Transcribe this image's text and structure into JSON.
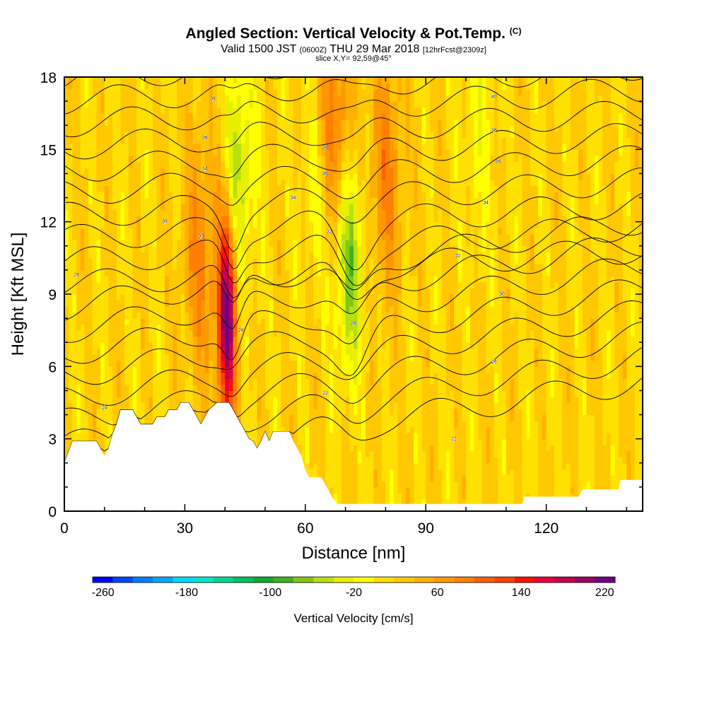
{
  "header": {
    "title": "Angled Section: Vertical Velocity & Pot.Temp.",
    "title_units": "(C)",
    "valid_prefix": "Valid 1500 JST",
    "valid_utc": "(0600Z)",
    "valid_date": "THU 29 Mar 2018",
    "forecast": "[12hrFcst@2309z]",
    "slice": "slice X,Y= 92,59@45°"
  },
  "chart_data": {
    "type": "heatmap",
    "xlabel": "Distance [nm]",
    "ylabel": "Height [Kft MSL]",
    "xlim": [
      0,
      144
    ],
    "ylim": [
      0,
      18
    ],
    "x_ticks": [
      "0",
      "30",
      "60",
      "90",
      "120"
    ],
    "x_tick_values": [
      0,
      30,
      60,
      90,
      120
    ],
    "y_ticks": [
      "0",
      "3",
      "6",
      "9",
      "12",
      "15",
      "18"
    ],
    "y_tick_values": [
      0,
      3,
      6,
      9,
      12,
      15,
      18
    ],
    "colorbar": {
      "title": "Vertical Velocity [cm/s]",
      "range": [
        -270,
        230
      ],
      "tick_labels": [
        "-260",
        "-180",
        "-100",
        "-20",
        "60",
        "140",
        "220"
      ],
      "tick_values": [
        -260,
        -180,
        -100,
        -20,
        60,
        140,
        220
      ],
      "colors": [
        "#0000ff",
        "#0044ff",
        "#0080ff",
        "#00a8ff",
        "#00d8ff",
        "#00e8c8",
        "#00d890",
        "#00c060",
        "#10a830",
        "#40b020",
        "#80c818",
        "#b8e010",
        "#e8f000",
        "#ffff00",
        "#ffe000",
        "#ffc800",
        "#ffb000",
        "#ff9800",
        "#ff8000",
        "#ff6000",
        "#ff4000",
        "#ff1000",
        "#e8003a",
        "#c00050",
        "#9a0064",
        "#700080"
      ]
    },
    "terrain_kft": [
      [
        0,
        2.0
      ],
      [
        2,
        2.9
      ],
      [
        8,
        2.9
      ],
      [
        9,
        2.6
      ],
      [
        10,
        2.3
      ],
      [
        11,
        2.6
      ],
      [
        12,
        3.2
      ],
      [
        13,
        3.6
      ],
      [
        14,
        4.2
      ],
      [
        17,
        4.2
      ],
      [
        18,
        3.9
      ],
      [
        19,
        3.6
      ],
      [
        20,
        3.6
      ],
      [
        21,
        3.6
      ],
      [
        22,
        3.6
      ],
      [
        23,
        3.9
      ],
      [
        25,
        3.9
      ],
      [
        26,
        4.2
      ],
      [
        28,
        4.2
      ],
      [
        29,
        4.5
      ],
      [
        31,
        4.5
      ],
      [
        32,
        4.2
      ],
      [
        33,
        3.9
      ],
      [
        34,
        3.6
      ],
      [
        35,
        3.9
      ],
      [
        36,
        4.2
      ],
      [
        38,
        4.5
      ],
      [
        41,
        4.5
      ],
      [
        42,
        4.2
      ],
      [
        43,
        3.9
      ],
      [
        44,
        3.6
      ],
      [
        45,
        3.3
      ],
      [
        46,
        3.0
      ],
      [
        47,
        2.9
      ],
      [
        48,
        2.6
      ],
      [
        49,
        2.9
      ],
      [
        50,
        3.3
      ],
      [
        51,
        2.9
      ],
      [
        52,
        3.3
      ],
      [
        56,
        3.3
      ],
      [
        57,
        2.9
      ],
      [
        58,
        2.6
      ],
      [
        59,
        2.3
      ],
      [
        60,
        1.7
      ],
      [
        61,
        1.4
      ],
      [
        64,
        1.4
      ],
      [
        65,
        1.1
      ],
      [
        66,
        0.8
      ],
      [
        67,
        0.5
      ],
      [
        68,
        0.3
      ],
      [
        114,
        0.3
      ],
      [
        114.5,
        0.6
      ],
      [
        128,
        0.6
      ],
      [
        129,
        0.9
      ],
      [
        138,
        0.9
      ],
      [
        138.5,
        1.3
      ],
      [
        144,
        1.3
      ]
    ],
    "updrafts": [
      {
        "x": 40.5,
        "z": 8.0,
        "peak_cm_s": 200
      },
      {
        "x": 34,
        "z": 10.5,
        "peak_cm_s": 60
      },
      {
        "x": 80,
        "z": 14,
        "peak_cm_s": 60
      },
      {
        "x": 67,
        "z": 16,
        "peak_cm_s": 80
      }
    ],
    "downdrafts": [
      {
        "x": 71,
        "z": 10.5,
        "peak_cm_s": -90
      },
      {
        "x": 43.5,
        "z": 14,
        "peak_cm_s": -70
      },
      {
        "x": 63,
        "z": 14,
        "peak_cm_s": -40
      },
      {
        "x": 103,
        "z": 16,
        "peak_cm_s": -30
      }
    ],
    "theta_contour_labels": [
      {
        "x": 3,
        "z": 9.8,
        "label": "28"
      },
      {
        "x": 10,
        "z": 4.3,
        "label": "24"
      },
      {
        "x": 25,
        "z": 12.0,
        "label": "30"
      },
      {
        "x": 34,
        "z": 11.4,
        "label": "30"
      },
      {
        "x": 35,
        "z": 14.2,
        "label": "34"
      },
      {
        "x": 35,
        "z": 15.5,
        "label": "36"
      },
      {
        "x": 37,
        "z": 17.1,
        "label": "38"
      },
      {
        "x": 44,
        "z": 7.5,
        "label": "26"
      },
      {
        "x": 57,
        "z": 13.0,
        "label": "34"
      },
      {
        "x": 65,
        "z": 4.9,
        "label": "22"
      },
      {
        "x": 65,
        "z": 14.0,
        "label": "36"
      },
      {
        "x": 65,
        "z": 15.1,
        "label": "38"
      },
      {
        "x": 66,
        "z": 11.6,
        "label": "32"
      },
      {
        "x": 72,
        "z": 7.8,
        "label": "26"
      },
      {
        "x": 97,
        "z": 3.0,
        "label": "22"
      },
      {
        "x": 98,
        "z": 10.6,
        "label": "32"
      },
      {
        "x": 105,
        "z": 12.8,
        "label": "34"
      },
      {
        "x": 107,
        "z": 6.2,
        "label": "26"
      },
      {
        "x": 107,
        "z": 15.8,
        "label": "38"
      },
      {
        "x": 107,
        "z": 17.2,
        "label": "40"
      },
      {
        "x": 108,
        "z": 14.5,
        "label": "36"
      },
      {
        "x": 109,
        "z": 9.0,
        "label": "30"
      }
    ]
  }
}
